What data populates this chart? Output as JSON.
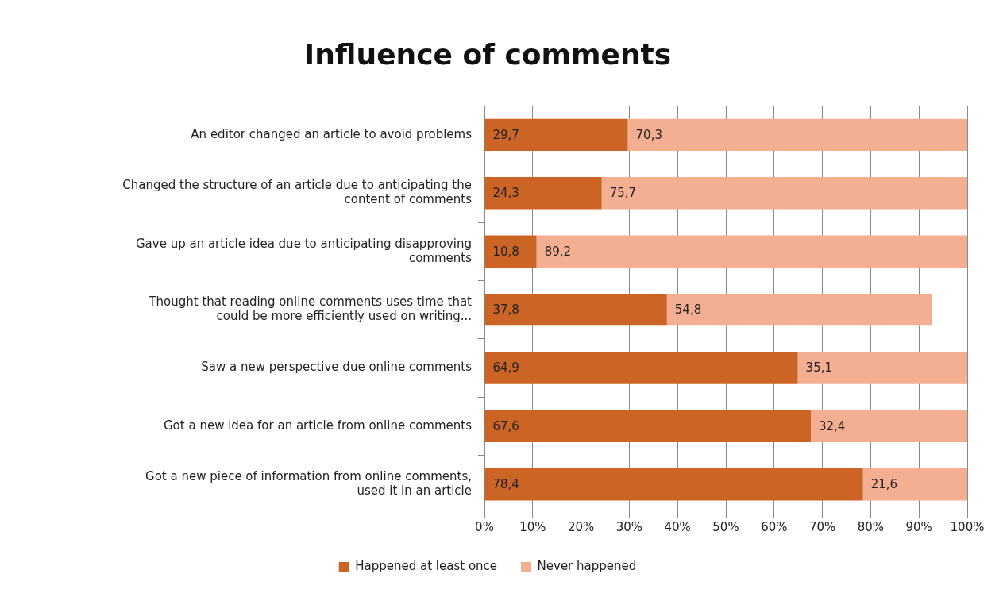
{
  "chart_data": {
    "type": "bar",
    "orientation": "horizontal",
    "stacked": true,
    "title": "Influence of comments",
    "categories": [
      "An editor changed an article to avoid problems",
      "Changed the structure of an article due to anticipating the content of comments",
      "Gave up an article idea due to anticipating disapproving comments",
      "Thought that reading online comments uses time that could be more efficiently used on writing...",
      "Saw a new perspective due online comments",
      "Got a new idea for an article from online comments",
      "Got a new piece of information from online comments, used it in an article"
    ],
    "series": [
      {
        "name": "Happened at least once",
        "color": "#cc6426",
        "values": [
          29.7,
          24.3,
          10.8,
          37.8,
          64.9,
          67.6,
          78.4
        ],
        "value_labels": [
          "29,7",
          "24,3",
          "10,8",
          "37,8",
          "64,9",
          "67,6",
          "78,4"
        ]
      },
      {
        "name": "Never happened",
        "color": "#f4ae92",
        "values": [
          70.3,
          75.7,
          89.2,
          54.8,
          35.1,
          32.4,
          21.6
        ],
        "value_labels": [
          "70,3",
          "75,7",
          "89,2",
          "54,8",
          "35,1",
          "32,4",
          "21,6"
        ]
      }
    ],
    "xlim": [
      0,
      100
    ],
    "xticks": [
      {
        "value": 0,
        "label": "0%"
      },
      {
        "value": 10,
        "label": "10%"
      },
      {
        "value": 20,
        "label": "20%"
      },
      {
        "value": 30,
        "label": "30%"
      },
      {
        "value": 40,
        "label": "40%"
      },
      {
        "value": 50,
        "label": "50%"
      },
      {
        "value": 60,
        "label": "60%"
      },
      {
        "value": 70,
        "label": "70%"
      },
      {
        "value": 80,
        "label": "80%"
      },
      {
        "value": 90,
        "label": "90%"
      },
      {
        "value": 100,
        "label": "100%"
      }
    ],
    "grid": "x",
    "legend": "bottom"
  }
}
